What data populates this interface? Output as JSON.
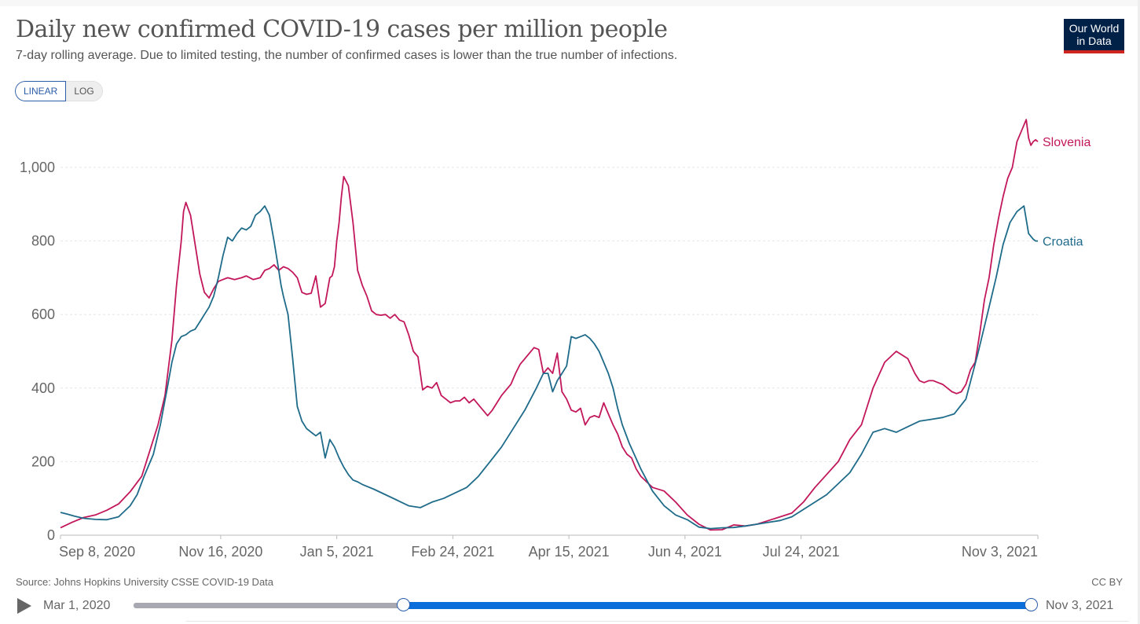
{
  "header": {
    "title": "Daily new confirmed COVID-19 cases per million people",
    "subtitle": "7-day rolling average. Due to limited testing, the number of confirmed cases is lower than the true number of infections.",
    "logo_line1": "Our World",
    "logo_line2": "in Data"
  },
  "scale_toggle": {
    "linear_label": "LINEAR",
    "log_label": "LOG",
    "selected": "LINEAR"
  },
  "footer": {
    "source": "Source: Johns Hopkins University CSSE COVID-19 Data",
    "license": "CC BY"
  },
  "timeline": {
    "start_label": "Mar 1, 2020",
    "end_label": "Nov 3, 2021",
    "selection_start_fraction": 0.3,
    "selection_end_fraction": 1.0
  },
  "colors": {
    "slovenia": "#c2185b",
    "croatia": "#1f6b8a",
    "grid": "#e6e6e6",
    "axis": "#bbbbbb",
    "accent": "#0a6fdb"
  },
  "chart_data": {
    "type": "line",
    "title": "Daily new confirmed COVID-19 cases per million people",
    "subtitle": "7-day rolling average. Due to limited testing, the number of confirmed cases is lower than the true number of infections.",
    "xlabel": "",
    "ylabel": "",
    "x_unit": "days since Sep 8, 2020",
    "xlim": [
      0,
      421
    ],
    "ylim": [
      0,
      1100
    ],
    "yticks": [
      0,
      200,
      400,
      600,
      800,
      1000
    ],
    "ytick_labels": [
      "0",
      "200",
      "400",
      "600",
      "800",
      "1,000"
    ],
    "xticks": [
      0,
      69,
      119,
      169,
      219,
      269,
      319,
      421
    ],
    "xtick_labels": [
      "Sep 8, 2020",
      "Nov 16, 2020",
      "Jan 5, 2021",
      "Feb 24, 2021",
      "Apr 15, 2021",
      "Jun 4, 2021",
      "Jul 24, 2021",
      "Nov 3, 2021"
    ],
    "grid": true,
    "legend": "inline-right",
    "series": [
      {
        "name": "Slovenia",
        "color": "#c2185b",
        "x": [
          0,
          5,
          10,
          15,
          20,
          25,
          30,
          35,
          40,
          42,
          45,
          48,
          50,
          52,
          53,
          54,
          56,
          58,
          60,
          62,
          64,
          66,
          68,
          70,
          72,
          75,
          78,
          80,
          83,
          86,
          88,
          90,
          92,
          94,
          96,
          98,
          100,
          102,
          104,
          106,
          108,
          110,
          112,
          114,
          116,
          117,
          118,
          119,
          120,
          121,
          122,
          124,
          126,
          128,
          130,
          132,
          134,
          136,
          138,
          140,
          142,
          144,
          146,
          148,
          150,
          152,
          154,
          156,
          158,
          160,
          162,
          164,
          166,
          168,
          170,
          172,
          174,
          176,
          178,
          180,
          182,
          184,
          186,
          188,
          190,
          192,
          194,
          196,
          198,
          200,
          202,
          204,
          206,
          208,
          210,
          212,
          214,
          216,
          218,
          220,
          222,
          224,
          226,
          228,
          230,
          232,
          234,
          236,
          238,
          240,
          242,
          244,
          246,
          248,
          250,
          255,
          260,
          265,
          270,
          275,
          280,
          285,
          290,
          295,
          300,
          305,
          310,
          315,
          320,
          325,
          330,
          335,
          340,
          345,
          350,
          355,
          360,
          365,
          368,
          370,
          372,
          374,
          376,
          378,
          380,
          382,
          384,
          386,
          388,
          390,
          392,
          394,
          396,
          398,
          400,
          402,
          404,
          406,
          408,
          410,
          412,
          414,
          416,
          417,
          418,
          419,
          420,
          421
        ],
        "values": [
          20,
          35,
          48,
          55,
          68,
          85,
          118,
          160,
          260,
          300,
          380,
          530,
          680,
          800,
          880,
          905,
          870,
          790,
          710,
          660,
          645,
          670,
          690,
          695,
          700,
          695,
          700,
          705,
          695,
          700,
          720,
          725,
          735,
          720,
          730,
          725,
          715,
          700,
          660,
          655,
          658,
          705,
          620,
          630,
          700,
          705,
          730,
          800,
          850,
          920,
          975,
          950,
          850,
          720,
          680,
          650,
          610,
          600,
          598,
          600,
          590,
          600,
          585,
          580,
          545,
          500,
          485,
          395,
          405,
          400,
          415,
          380,
          370,
          360,
          365,
          365,
          375,
          360,
          370,
          355,
          340,
          325,
          340,
          360,
          380,
          395,
          410,
          440,
          465,
          480,
          495,
          510,
          505,
          440,
          455,
          440,
          495,
          390,
          370,
          340,
          335,
          345,
          300,
          320,
          325,
          320,
          360,
          330,
          300,
          275,
          240,
          220,
          210,
          180,
          160,
          130,
          120,
          90,
          55,
          30,
          14,
          15,
          28,
          25,
          30,
          40,
          50,
          60,
          90,
          130,
          165,
          200,
          260,
          300,
          400,
          470,
          500,
          480,
          440,
          420,
          415,
          420,
          420,
          415,
          410,
          400,
          390,
          385,
          390,
          410,
          450,
          470,
          550,
          640,
          700,
          790,
          860,
          920,
          970,
          1000,
          1070,
          1100,
          1130,
          1080,
          1060,
          1070,
          1075,
          1070
        ]
      },
      {
        "name": "Croatia",
        "color": "#1f6b8a",
        "x": [
          0,
          3,
          6,
          10,
          15,
          20,
          25,
          30,
          33,
          36,
          40,
          43,
          46,
          48,
          50,
          52,
          54,
          56,
          58,
          60,
          62,
          64,
          66,
          68,
          70,
          72,
          74,
          76,
          78,
          80,
          82,
          84,
          86,
          88,
          90,
          92,
          94,
          95,
          96,
          98,
          100,
          102,
          104,
          106,
          108,
          110,
          112,
          114,
          116,
          118,
          120,
          122,
          124,
          126,
          128,
          130,
          135,
          140,
          145,
          150,
          155,
          160,
          165,
          170,
          175,
          180,
          185,
          190,
          195,
          200,
          205,
          208,
          210,
          212,
          214,
          216,
          218,
          220,
          222,
          224,
          226,
          228,
          230,
          232,
          234,
          236,
          238,
          240,
          242,
          245,
          250,
          255,
          260,
          265,
          270,
          275,
          280,
          285,
          290,
          295,
          300,
          305,
          310,
          315,
          320,
          325,
          330,
          335,
          340,
          345,
          350,
          355,
          360,
          365,
          370,
          375,
          380,
          385,
          390,
          395,
          400,
          403,
          406,
          409,
          412,
          415,
          417,
          419,
          420,
          421
        ],
        "values": [
          62,
          57,
          52,
          46,
          43,
          42,
          50,
          80,
          110,
          160,
          220,
          300,
          400,
          470,
          520,
          540,
          545,
          555,
          560,
          580,
          600,
          620,
          650,
          700,
          760,
          810,
          800,
          820,
          835,
          830,
          840,
          870,
          880,
          895,
          870,
          800,
          720,
          680,
          650,
          600,
          480,
          350,
          310,
          290,
          280,
          270,
          280,
          210,
          260,
          240,
          210,
          185,
          165,
          150,
          145,
          138,
          125,
          110,
          95,
          80,
          75,
          90,
          100,
          115,
          130,
          160,
          200,
          240,
          290,
          340,
          400,
          440,
          440,
          390,
          420,
          440,
          460,
          540,
          535,
          540,
          545,
          535,
          520,
          500,
          470,
          440,
          400,
          345,
          300,
          250,
          180,
          120,
          80,
          55,
          42,
          22,
          18,
          20,
          21,
          25,
          30,
          35,
          40,
          50,
          70,
          90,
          110,
          140,
          170,
          220,
          280,
          290,
          280,
          295,
          310,
          315,
          320,
          330,
          370,
          490,
          620,
          700,
          790,
          850,
          880,
          895,
          820,
          805,
          800,
          800
        ]
      }
    ]
  }
}
